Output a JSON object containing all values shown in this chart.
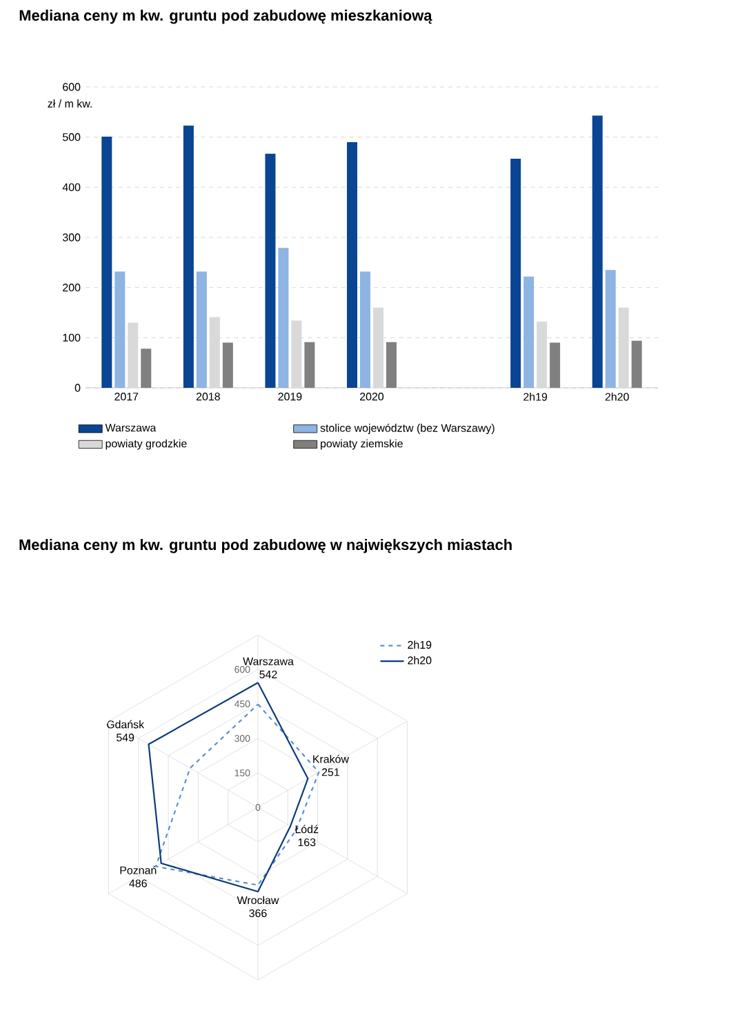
{
  "chart_data": [
    {
      "type": "bar",
      "title": "Mediana ceny m kw. gruntu pod zabudowę mieszkaniową",
      "ylabel": "zł / m kw.",
      "categories": [
        "2017",
        "2018",
        "2019",
        "2020",
        null,
        "2h19",
        "2h20"
      ],
      "series": [
        {
          "name": "Warszawa",
          "color": "#0a4593",
          "values": [
            501,
            523,
            467,
            490,
            null,
            457,
            543
          ]
        },
        {
          "name": "stolice województw (bez Warszawy)",
          "color": "#8db4e2",
          "values": [
            232,
            232,
            279,
            232,
            null,
            222,
            235
          ]
        },
        {
          "name": "powiaty grodzkie",
          "color": "#d9d9d9",
          "values": [
            130,
            141,
            134,
            160,
            null,
            132,
            160
          ]
        },
        {
          "name": "powiaty ziemskie",
          "color": "#808080",
          "values": [
            78,
            90,
            91,
            91,
            null,
            90,
            94
          ]
        }
      ],
      "ylim": [
        0,
        600
      ],
      "yticks": [
        0,
        100,
        200,
        300,
        400,
        500,
        600
      ],
      "grid": "y",
      "legend": "bottom"
    },
    {
      "type": "radar",
      "title": "Mediana ceny m kw. gruntu pod zabudowę w największych miastach",
      "categories": [
        "Warszawa",
        "Kraków",
        "Łódź",
        "Wrocław",
        "Poznań",
        "Gdańsk"
      ],
      "series": [
        {
          "name": "2h19",
          "color": "#5b8fd0",
          "line_style": "dashed",
          "values": [
            448,
            306,
            193,
            338,
            513,
            341
          ]
        },
        {
          "name": "2h20",
          "color": "#0b3a7a",
          "line_style": "solid",
          "values": [
            542,
            251,
            163,
            366,
            486,
            549
          ],
          "value_labels": [
            "542",
            "251",
            "163",
            "366",
            "486",
            "549"
          ]
        }
      ],
      "ylim": [
        0,
        750
      ],
      "yticks": [
        0,
        150,
        300,
        450,
        600
      ],
      "grid": true,
      "legend": "top right"
    }
  ]
}
